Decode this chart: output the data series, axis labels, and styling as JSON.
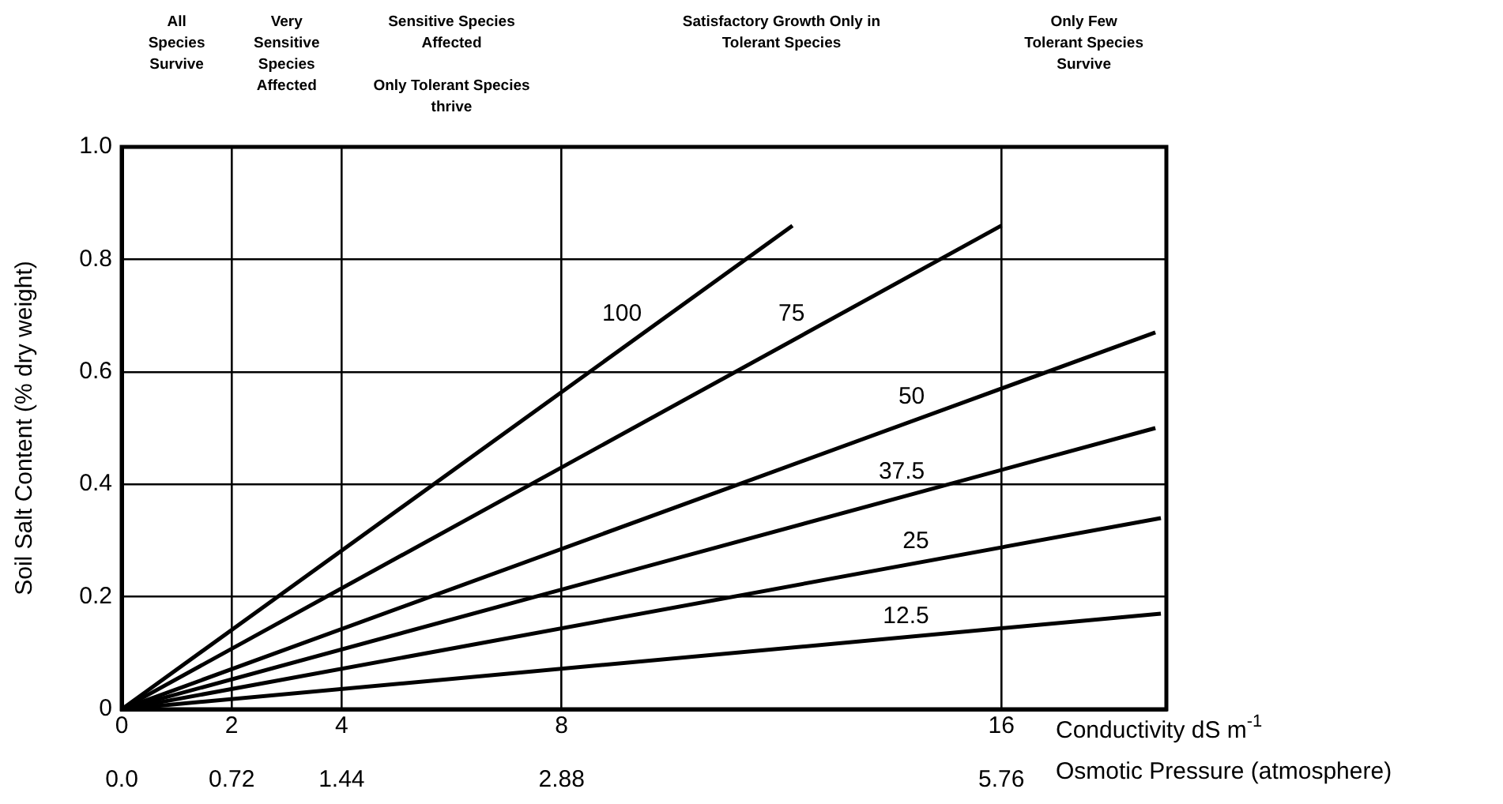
{
  "chart_data": {
    "type": "line",
    "xlabel": "Conductivity dS m$^{-1}$",
    "x2label": "Osmotic Pressure (atmosphere)",
    "ylabel": "Soil Salt Content (% dry weight)",
    "xlim": [
      0,
      19
    ],
    "xticks": [
      0,
      2,
      4,
      8,
      16
    ],
    "x2lim": [
      0,
      6.84
    ],
    "x2ticks": [
      {
        "value": 0,
        "label": "0.0"
      },
      0.72,
      1.44,
      2.88,
      5.76
    ],
    "ylim": [
      0,
      1
    ],
    "yticks": [
      {
        "value": 0,
        "label": "0"
      },
      0.2,
      0.4,
      0.6,
      0.8,
      {
        "value": 1,
        "label": "1.0"
      }
    ],
    "grid": true,
    "legend": false,
    "marker": "none",
    "line_style": "solid",
    "annotations": [
      "All\nSpecies\nSurvive",
      "Very\nSensitive\nSpecies\nAffected",
      "Sensitive Species\nAffected",
      "Only Tolerant Species\nthrive",
      "Satisfactory Growth Only in\nTolerant Species",
      "Only Few\nTolerant Species\nSurvive"
    ],
    "series": [
      {
        "name": "100",
        "color": "#000000",
        "x": [
          0,
          12.2
        ],
        "values": [
          0,
          0.86
        ]
      },
      {
        "name": "75",
        "color": "#000000",
        "x": [
          0,
          16
        ],
        "values": [
          0,
          0.86
        ]
      },
      {
        "name": "50",
        "color": "#000000",
        "x": [
          0,
          18.8
        ],
        "values": [
          0,
          0.67
        ]
      },
      {
        "name": "37.5",
        "color": "#000000",
        "x": [
          0,
          18.8
        ],
        "values": [
          0,
          0.5
        ]
      },
      {
        "name": "25",
        "color": "#000000",
        "x": [
          0,
          18.9
        ],
        "values": [
          0,
          0.34
        ]
      },
      {
        "name": "12.5",
        "color": "#000000",
        "x": [
          0,
          18.9
        ],
        "values": [
          0,
          0.17
        ]
      }
    ]
  }
}
